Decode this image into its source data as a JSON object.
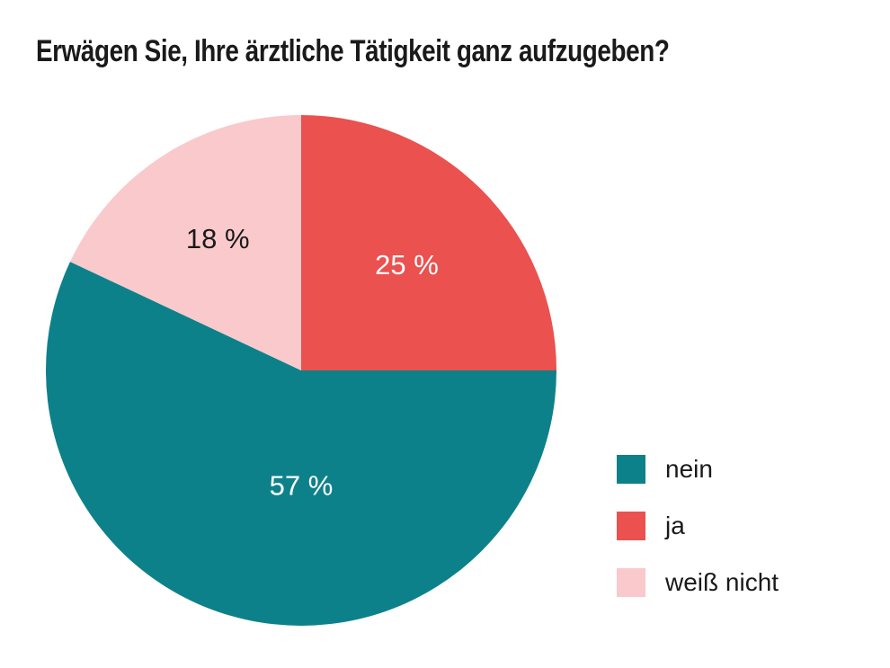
{
  "title": "Erwägen Sie, Ihre ärztliche Tätigkeit ganz aufzugeben?",
  "colors": {
    "background": "#FFFFFF",
    "text": "#1A1A1A",
    "teal": "#0D818A",
    "red": "#EA514F",
    "pink": "#F9C9CC"
  },
  "chart_data": {
    "type": "pie",
    "title": "Erwägen Sie, Ihre ärztliche Tätigkeit ganz aufzugeben?",
    "start_angle_deg": 0,
    "direction": "clockwise",
    "slices": [
      {
        "label": "ja",
        "value": 25,
        "display": "25 %",
        "color": "#EA514F",
        "text_color": "#FFFFFF",
        "label_angle_deg": 45,
        "label_r_frac": 0.585
      },
      {
        "label": "nein",
        "value": 57,
        "display": "57 %",
        "color": "#0D818A",
        "text_color": "#FFFFFF",
        "label_angle_deg": 180,
        "label_r_frac": 0.45
      },
      {
        "label": "weiß nicht",
        "value": 18,
        "display": "18 %",
        "color": "#F9C9CC",
        "text_color": "#1A1A1A",
        "label_angle_deg": 327.6,
        "label_r_frac": 0.61
      }
    ],
    "legend": {
      "position": "right",
      "entries": [
        {
          "label": "nein",
          "color": "#0D818A"
        },
        {
          "label": "ja",
          "color": "#EA514F"
        },
        {
          "label": "weiß nicht",
          "color": "#F9C9CC"
        }
      ]
    }
  }
}
